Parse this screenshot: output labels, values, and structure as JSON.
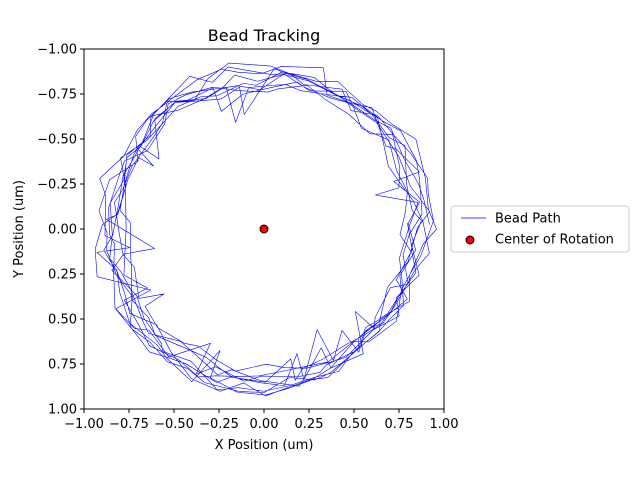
{
  "chart_data": {
    "type": "line",
    "title": "Bead Tracking",
    "xlabel": "X Position (um)",
    "ylabel": "Y Position (um)",
    "xlim": [
      -1.0,
      1.0
    ],
    "ylim": [
      1.0,
      -1.0
    ],
    "y_inverted": true,
    "grid": false,
    "legend_placement": "right-center",
    "x_ticks": [
      "−1.00",
      "−0.75",
      "−0.50",
      "−0.25",
      "0.00",
      "0.25",
      "0.50",
      "0.75",
      "1.00"
    ],
    "x_tick_values": [
      -1.0,
      -0.75,
      -0.5,
      -0.25,
      0.0,
      0.25,
      0.5,
      0.75,
      1.0
    ],
    "y_ticks": [
      "−1.00",
      "−0.75",
      "−0.50",
      "−0.25",
      "0.00",
      "0.25",
      "0.50",
      "0.75",
      "1.00"
    ],
    "y_tick_values": [
      -1.0,
      -0.75,
      -0.5,
      -0.25,
      0.0,
      0.25,
      0.5,
      0.75,
      1.0
    ],
    "series": [
      {
        "name": "Bead Path",
        "color": "#0000ff",
        "kind": "line",
        "path_shape": "noisy circular orbit, radius approx 0.85, about 10 revolutions",
        "mean_radius": 0.85,
        "radius_spread": 0.1,
        "revolutions": 10
      },
      {
        "name": "Center of Rotation",
        "color": "#ff0000",
        "edge_color": "#000000",
        "kind": "scatter",
        "x": [
          0.0
        ],
        "y": [
          0.0
        ]
      }
    ]
  }
}
